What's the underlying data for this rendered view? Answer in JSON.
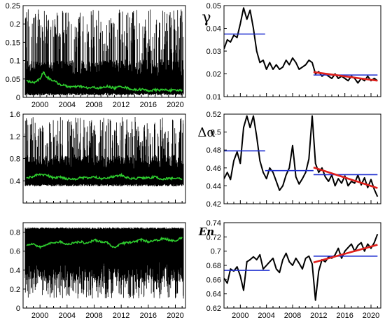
{
  "colors": {
    "noise": "#000000",
    "smooth_green": "#2ecc2e",
    "blue_line": "#1f2fd0",
    "red_trend": "#e0201c",
    "curve": "#000000"
  },
  "chart_data": [
    {
      "type": "line",
      "panel": "left-top",
      "xlim": [
        1997.5,
        2021.5
      ],
      "ylim": [
        0,
        0.25
      ],
      "xticks": [
        "2000",
        "2004",
        "2008",
        "2012",
        "2016",
        "2020"
      ],
      "yticks": [
        "0",
        "0.05",
        "0.1",
        "0.15",
        "0.2",
        "0.25"
      ],
      "smooth": {
        "x": [
          1998,
          1999,
          2000,
          2000.5,
          2001,
          2002,
          2003,
          2004,
          2005,
          2006,
          2007,
          2008,
          2009,
          2010,
          2011,
          2012,
          2013,
          2014,
          2015,
          2016,
          2017,
          2018,
          2019,
          2020,
          2021
        ],
        "y": [
          0.045,
          0.04,
          0.05,
          0.07,
          0.055,
          0.045,
          0.035,
          0.03,
          0.028,
          0.03,
          0.025,
          0.027,
          0.025,
          0.03,
          0.025,
          0.03,
          0.025,
          0.02,
          0.022,
          0.018,
          0.02,
          0.02,
          0.02,
          0.018,
          0.02
        ]
      },
      "band": {
        "lo": 0.005,
        "hi_core": 0.09,
        "hi_peak": 0.24
      }
    },
    {
      "type": "line",
      "panel": "right-top",
      "label": "γ",
      "xlim": [
        1997.5,
        2021.5
      ],
      "ylim": [
        0.01,
        0.05
      ],
      "xticks": [],
      "yticks": [
        "0.01",
        "0.02",
        "0.03",
        "0.04",
        "0.05"
      ],
      "curve": {
        "x": [
          1997.5,
          1998,
          1998.5,
          1999,
          1999.5,
          2000,
          2000.5,
          2001,
          2001.5,
          2002,
          2002.5,
          2003,
          2003.5,
          2004,
          2004.5,
          2005,
          2005.5,
          2006,
          2006.5,
          2007,
          2007.5,
          2008,
          2008.5,
          2009,
          2009.5,
          2010,
          2010.5,
          2011,
          2011.5,
          2012,
          2012.5,
          2013,
          2013.5,
          2014,
          2014.5,
          2015,
          2015.5,
          2016,
          2016.5,
          2017,
          2017.5,
          2018,
          2018.5,
          2019,
          2019.5,
          2020,
          2020.5,
          2021
        ],
        "y": [
          0.031,
          0.035,
          0.034,
          0.037,
          0.036,
          0.042,
          0.049,
          0.044,
          0.048,
          0.04,
          0.03,
          0.025,
          0.026,
          0.022,
          0.025,
          0.022,
          0.024,
          0.022,
          0.023,
          0.026,
          0.024,
          0.027,
          0.025,
          0.022,
          0.023,
          0.024,
          0.026,
          0.025,
          0.02,
          0.021,
          0.019,
          0.02,
          0.019,
          0.018,
          0.02,
          0.018,
          0.019,
          0.018,
          0.017,
          0.019,
          0.018,
          0.016,
          0.018,
          0.017,
          0.019,
          0.017,
          0.018,
          0.017
        ]
      },
      "levels": [
        {
          "x": [
            1997.5,
            2003.8
          ],
          "y": 0.0375
        },
        {
          "x": [
            2011.2,
            2021
          ],
          "y": 0.0195
        }
      ],
      "trend": {
        "x": [
          2011.2,
          2021
        ],
        "y": [
          0.0208,
          0.017
        ]
      }
    },
    {
      "type": "line",
      "panel": "left-middle",
      "xlim": [
        1997.5,
        2021.5
      ],
      "ylim": [
        0,
        1.6
      ],
      "xticks": [],
      "yticks": [
        "0.4",
        "0.8",
        "1.2",
        "1.6"
      ],
      "smooth": {
        "x": [
          1998,
          1999,
          2000,
          2001,
          2002,
          2003,
          2004,
          2005,
          2006,
          2007,
          2008,
          2009,
          2010,
          2011,
          2012,
          2013,
          2014,
          2015,
          2016,
          2017,
          2018,
          2019,
          2020,
          2021
        ],
        "y": [
          0.45,
          0.48,
          0.52,
          0.5,
          0.45,
          0.47,
          0.44,
          0.43,
          0.46,
          0.45,
          0.47,
          0.44,
          0.46,
          0.48,
          0.5,
          0.45,
          0.44,
          0.46,
          0.45,
          0.47,
          0.43,
          0.44,
          0.45,
          0.43
        ]
      },
      "band": {
        "lo": 0.3,
        "hi_core": 0.8,
        "hi_peak": 1.55
      }
    },
    {
      "type": "line",
      "panel": "right-middle",
      "label": "Δα",
      "xlim": [
        1997.5,
        2021.5
      ],
      "ylim": [
        0.42,
        0.52
      ],
      "xticks": [],
      "yticks": [
        "0.42",
        "0.44",
        "0.46",
        "0.48",
        "0.5",
        "0.52"
      ],
      "curve": {
        "x": [
          1997.5,
          1998,
          1998.5,
          1999,
          1999.5,
          2000,
          2000.5,
          2001,
          2001.5,
          2002,
          2002.5,
          2003,
          2003.5,
          2004,
          2004.5,
          2005,
          2005.5,
          2006,
          2006.5,
          2007,
          2007.5,
          2008,
          2008.5,
          2009,
          2009.5,
          2010,
          2010.5,
          2011,
          2011.5,
          2012,
          2012.5,
          2013,
          2013.5,
          2014,
          2014.5,
          2015,
          2015.5,
          2016,
          2016.5,
          2017,
          2017.5,
          2018,
          2018.5,
          2019,
          2019.5,
          2020,
          2020.5,
          2021
        ],
        "y": [
          0.448,
          0.455,
          0.447,
          0.468,
          0.478,
          0.465,
          0.505,
          0.518,
          0.505,
          0.518,
          0.495,
          0.468,
          0.455,
          0.448,
          0.46,
          0.455,
          0.445,
          0.435,
          0.44,
          0.452,
          0.46,
          0.485,
          0.45,
          0.442,
          0.448,
          0.455,
          0.47,
          0.518,
          0.465,
          0.455,
          0.46,
          0.45,
          0.445,
          0.452,
          0.44,
          0.448,
          0.443,
          0.451,
          0.44,
          0.445,
          0.443,
          0.452,
          0.441,
          0.449,
          0.438,
          0.447,
          0.436,
          0.428
        ]
      },
      "levels": [
        {
          "x": [
            1997.5,
            2003.8
          ],
          "y": 0.479
        },
        {
          "x": [
            2003.8,
            2011.2
          ],
          "y": 0.457
        },
        {
          "x": [
            2011.2,
            2021
          ],
          "y": 0.4525
        }
      ],
      "trend": {
        "x": [
          2011.2,
          2021
        ],
        "y": [
          0.4605,
          0.4375
        ]
      }
    },
    {
      "type": "line",
      "panel": "left-bottom",
      "xlim": [
        1997.5,
        2021.5
      ],
      "ylim": [
        0,
        0.9
      ],
      "xticks": [
        "2000",
        "2004",
        "2008",
        "2012",
        "2016",
        "2020"
      ],
      "yticks": [
        "0",
        "0.2",
        "0.4",
        "0.6",
        "0.8"
      ],
      "smooth": {
        "x": [
          1998,
          1999,
          2000,
          2001,
          2002,
          2003,
          2004,
          2005,
          2006,
          2007,
          2008,
          2009,
          2010,
          2011,
          2012,
          2013,
          2014,
          2015,
          2016,
          2017,
          2018,
          2019,
          2020,
          2021
        ],
        "y": [
          0.66,
          0.68,
          0.64,
          0.67,
          0.69,
          0.7,
          0.67,
          0.69,
          0.7,
          0.68,
          0.72,
          0.7,
          0.69,
          0.63,
          0.68,
          0.69,
          0.7,
          0.72,
          0.7,
          0.71,
          0.73,
          0.72,
          0.71,
          0.74
        ]
      },
      "band": {
        "lo": 0.35,
        "hi_core": 0.85,
        "lo_peak": 0.1
      }
    },
    {
      "type": "line",
      "panel": "right-bottom",
      "label": "En",
      "xlim": [
        1997.5,
        2021.5
      ],
      "ylim": [
        0.62,
        0.74
      ],
      "xticks": [
        "2000",
        "2004",
        "2008",
        "2012",
        "2016",
        "2020"
      ],
      "yticks": [
        "0.62",
        "0.64",
        "0.66",
        "0.68",
        "0.7",
        "0.72",
        "0.74"
      ],
      "curve": {
        "x": [
          1997.5,
          1998,
          1998.5,
          1999,
          1999.5,
          2000,
          2000.5,
          2001,
          2001.5,
          2002,
          2002.5,
          2003,
          2003.5,
          2004,
          2004.5,
          2005,
          2005.5,
          2006,
          2006.5,
          2007,
          2007.5,
          2008,
          2008.5,
          2009,
          2009.5,
          2010,
          2010.5,
          2011,
          2011.5,
          2012,
          2012.5,
          2013,
          2013.5,
          2014,
          2014.5,
          2015,
          2015.5,
          2016,
          2016.5,
          2017,
          2017.5,
          2018,
          2018.5,
          2019,
          2019.5,
          2020,
          2020.5,
          2021
        ],
        "y": [
          0.662,
          0.655,
          0.675,
          0.672,
          0.678,
          0.665,
          0.645,
          0.685,
          0.688,
          0.692,
          0.688,
          0.695,
          0.675,
          0.68,
          0.685,
          0.69,
          0.675,
          0.67,
          0.688,
          0.697,
          0.685,
          0.68,
          0.69,
          0.683,
          0.675,
          0.69,
          0.693,
          0.682,
          0.631,
          0.672,
          0.688,
          0.685,
          0.692,
          0.69,
          0.695,
          0.704,
          0.69,
          0.7,
          0.705,
          0.71,
          0.7,
          0.708,
          0.712,
          0.7,
          0.71,
          0.704,
          0.712,
          0.724
        ]
      },
      "levels": [
        {
          "x": [
            1997.5,
            2004.5
          ],
          "y": 0.673
        },
        {
          "x": [
            2011.2,
            2021
          ],
          "y": 0.693
        }
      ],
      "trend": {
        "x": [
          2011.2,
          2021
        ],
        "y": [
          0.684,
          0.709
        ]
      }
    }
  ]
}
